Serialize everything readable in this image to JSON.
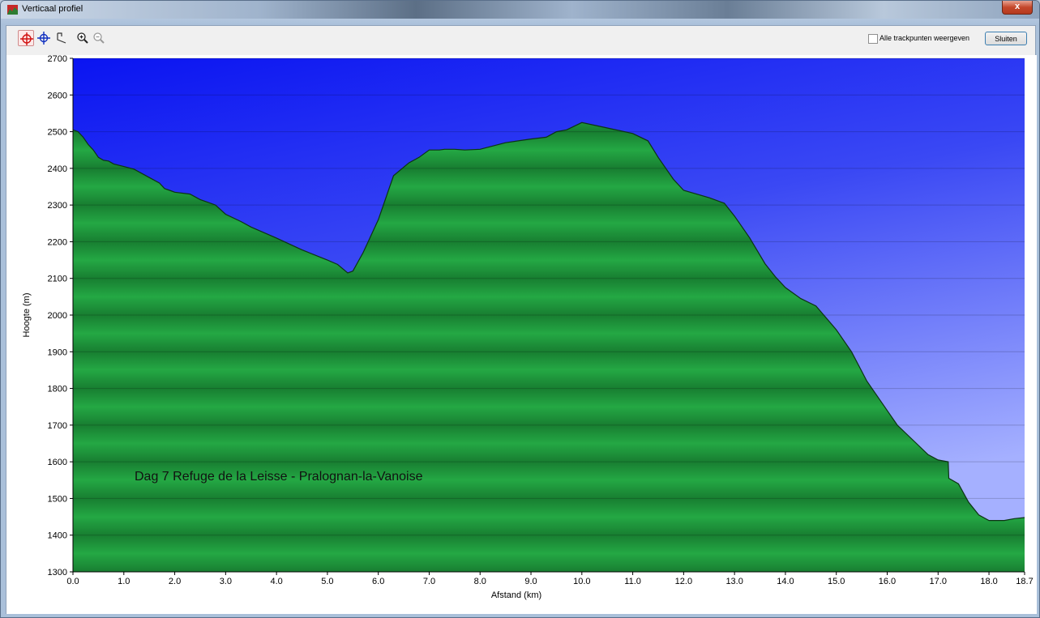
{
  "window": {
    "title": "Verticaal profiel",
    "close_glyph": "x"
  },
  "toolbar": {
    "tools": [
      "crosshair-red-icon",
      "crosshair-blue-icon",
      "lasso-select-icon",
      "zoom-in-icon",
      "zoom-out-icon"
    ],
    "show_all_label": "Alle trackpunten weergeven",
    "show_all_checked": false,
    "close_label": "Sluiten"
  },
  "colors": {
    "sky_top": "#0a14f2",
    "sky_bottom": "#a5b0ff",
    "terrain": "#1f9f3c",
    "terrain_dark": "#157a2b",
    "outline": "#0c3314"
  },
  "chart_data": {
    "type": "area",
    "title": "",
    "xlabel": "Afstand  (km)",
    "ylabel": "Hoogte (m)",
    "xlim": [
      0,
      18.7
    ],
    "ylim": [
      1300,
      2700
    ],
    "x_ticks": [
      "0.0",
      "1.0",
      "2.0",
      "3.0",
      "4.0",
      "5.0",
      "6.0",
      "7.0",
      "8.0",
      "9.0",
      "10.0",
      "11.0",
      "12.0",
      "13.0",
      "14.0",
      "15.0",
      "16.0",
      "17.0",
      "18.0",
      "18.7"
    ],
    "y_ticks": [
      "1300",
      "1400",
      "1500",
      "1600",
      "1700",
      "1800",
      "1900",
      "2000",
      "2100",
      "2200",
      "2300",
      "2400",
      "2500",
      "2600",
      "2700"
    ],
    "grid": true,
    "annotation": "Dag 7 Refuge de la Leisse - Pralognan-la-Vanoise",
    "x": [
      0.0,
      0.1,
      0.2,
      0.3,
      0.4,
      0.5,
      0.6,
      0.7,
      0.8,
      1.0,
      1.2,
      1.5,
      1.7,
      1.8,
      1.9,
      2.0,
      2.3,
      2.5,
      2.8,
      3.0,
      3.3,
      3.5,
      4.0,
      4.5,
      5.0,
      5.2,
      5.4,
      5.5,
      5.7,
      6.0,
      6.3,
      6.6,
      6.8,
      7.0,
      7.2,
      7.3,
      7.5,
      7.7,
      8.0,
      8.5,
      9.0,
      9.3,
      9.5,
      9.7,
      10.0,
      10.5,
      11.0,
      11.3,
      11.5,
      11.8,
      12.0,
      12.5,
      12.8,
      13.0,
      13.3,
      13.6,
      13.8,
      14.0,
      14.3,
      14.6,
      15.0,
      15.3,
      15.6,
      15.9,
      16.2,
      16.5,
      16.8,
      17.0,
      17.2,
      17.21,
      17.4,
      17.6,
      17.8,
      18.0,
      18.3,
      18.5,
      18.7
    ],
    "y": [
      2505,
      2500,
      2485,
      2465,
      2450,
      2430,
      2422,
      2420,
      2412,
      2405,
      2398,
      2375,
      2360,
      2345,
      2340,
      2335,
      2330,
      2315,
      2300,
      2275,
      2255,
      2240,
      2210,
      2178,
      2150,
      2138,
      2115,
      2120,
      2170,
      2260,
      2380,
      2415,
      2430,
      2450,
      2450,
      2452,
      2452,
      2450,
      2452,
      2470,
      2480,
      2485,
      2500,
      2505,
      2525,
      2510,
      2495,
      2475,
      2430,
      2370,
      2340,
      2320,
      2305,
      2270,
      2210,
      2140,
      2105,
      2075,
      2045,
      2025,
      1960,
      1900,
      1820,
      1760,
      1700,
      1660,
      1620,
      1605,
      1600,
      1555,
      1540,
      1490,
      1455,
      1440,
      1440,
      1445,
      1448
    ]
  }
}
